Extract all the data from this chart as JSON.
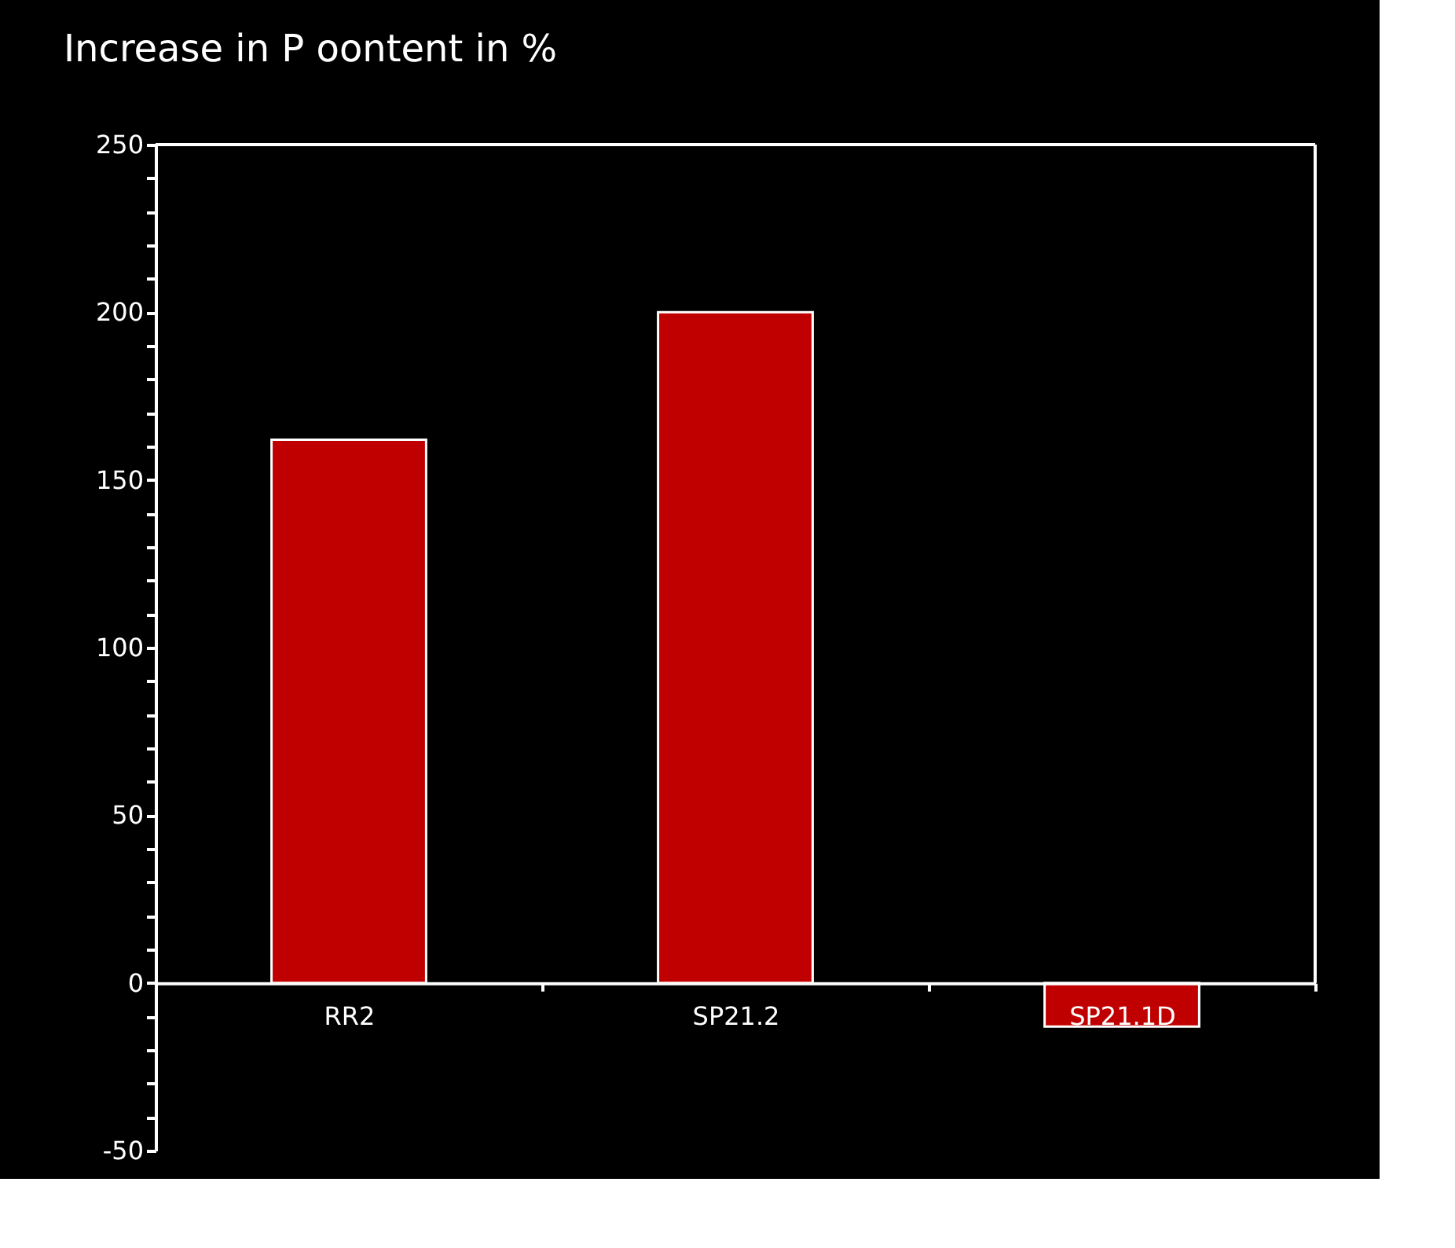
{
  "chart_data": {
    "type": "bar",
    "title": "Increase in P oontent in %",
    "categories": [
      "RR2",
      "SP21.2",
      "SP21.1D"
    ],
    "series": [
      {
        "color": "#c00000",
        "values": [
          162,
          200,
          -13
        ]
      }
    ],
    "ylim": [
      -50,
      250
    ],
    "yticks": [
      -50,
      {
        "value": -40,
        "label": null
      },
      {
        "value": -30,
        "label": null
      },
      {
        "value": -20,
        "label": null
      },
      {
        "value": -10,
        "label": null
      },
      0,
      {
        "value": 10,
        "label": null
      },
      {
        "value": 20,
        "label": null
      },
      {
        "value": 30,
        "label": null
      },
      {
        "value": 40,
        "label": null
      },
      50,
      {
        "value": 60,
        "label": null
      },
      {
        "value": 70,
        "label": null
      },
      {
        "value": 80,
        "label": null
      },
      {
        "value": 90,
        "label": null
      },
      100,
      {
        "value": 110,
        "label": null
      },
      {
        "value": 120,
        "label": null
      },
      {
        "value": 130,
        "label": null
      },
      {
        "value": 140,
        "label": null
      },
      150,
      {
        "value": 160,
        "label": null
      },
      {
        "value": 170,
        "label": null
      },
      {
        "value": 180,
        "label": null
      },
      {
        "value": 190,
        "label": null
      },
      200,
      {
        "value": 210,
        "label": null
      },
      {
        "value": 220,
        "label": null
      },
      {
        "value": 230,
        "label": null
      },
      {
        "value": 240,
        "label": null
      },
      250
    ],
    "grid": false
  }
}
